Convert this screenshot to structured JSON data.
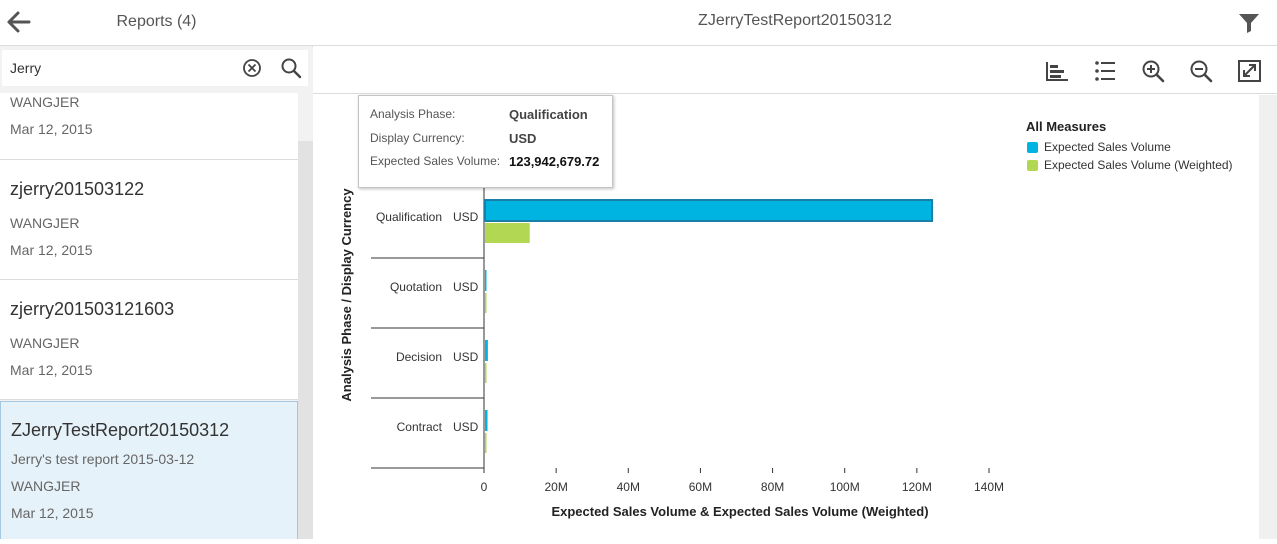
{
  "master": {
    "title": "Reports (4)",
    "search": {
      "value": "Jerry",
      "placeholder": "Search"
    },
    "items": [
      {
        "title": "",
        "description": "",
        "owner": "WANGJER",
        "date": "Mar 12, 2015"
      },
      {
        "title": "zjerry201503122",
        "description": "",
        "owner": "WANGJER",
        "date": "Mar 12, 2015"
      },
      {
        "title": "zjerry201503121603",
        "description": "",
        "owner": "WANGJER",
        "date": "Mar 12, 2015"
      },
      {
        "title": "ZJerryTestReport20150312",
        "description": "Jerry's test report 2015-03-12",
        "owner": "WANGJER",
        "date": "Mar 12, 2015"
      }
    ]
  },
  "detail": {
    "title": "ZJerryTestReport20150312",
    "toolbar": [
      "bar-chart-icon",
      "list-icon",
      "zoom-in-icon",
      "zoom-out-icon",
      "fullscreen-icon"
    ]
  },
  "tooltip": {
    "rows": [
      {
        "key": "Analysis Phase:",
        "value": "Qualification"
      },
      {
        "key": "Display Currency:",
        "value": "USD"
      },
      {
        "key": "Expected Sales Volume:",
        "value": "123,942,679.72"
      }
    ]
  },
  "colors": {
    "series1": "#00b4e2",
    "series2": "#b2d752",
    "selected": "#e5f2f9"
  },
  "chart_data": {
    "type": "bar",
    "orientation": "horizontal",
    "categories": [
      {
        "phase": "Qualification",
        "currency": "USD"
      },
      {
        "phase": "Quotation",
        "currency": "USD"
      },
      {
        "phase": "Decision",
        "currency": "USD"
      },
      {
        "phase": "Contract",
        "currency": "USD"
      }
    ],
    "series": [
      {
        "name": "Expected Sales Volume",
        "values": [
          123942679.72,
          300000,
          800000,
          700000
        ]
      },
      {
        "name": "Expected Sales Volume (Weighted)",
        "values": [
          12400000,
          60000,
          400000,
          350000
        ]
      }
    ],
    "legend_title": "All Measures",
    "xlabel": "Expected Sales Volume & Expected Sales Volume (Weighted)",
    "ylabel": "Analysis Phase / Display Currency",
    "xlim": [
      0,
      140000000
    ],
    "xticks": [
      0,
      20000000,
      40000000,
      60000000,
      80000000,
      100000000,
      120000000,
      140000000
    ],
    "xtick_labels": [
      "0",
      "20M",
      "40M",
      "60M",
      "80M",
      "100M",
      "120M",
      "140M"
    ],
    "legend_position": "top-right",
    "grid": false
  }
}
